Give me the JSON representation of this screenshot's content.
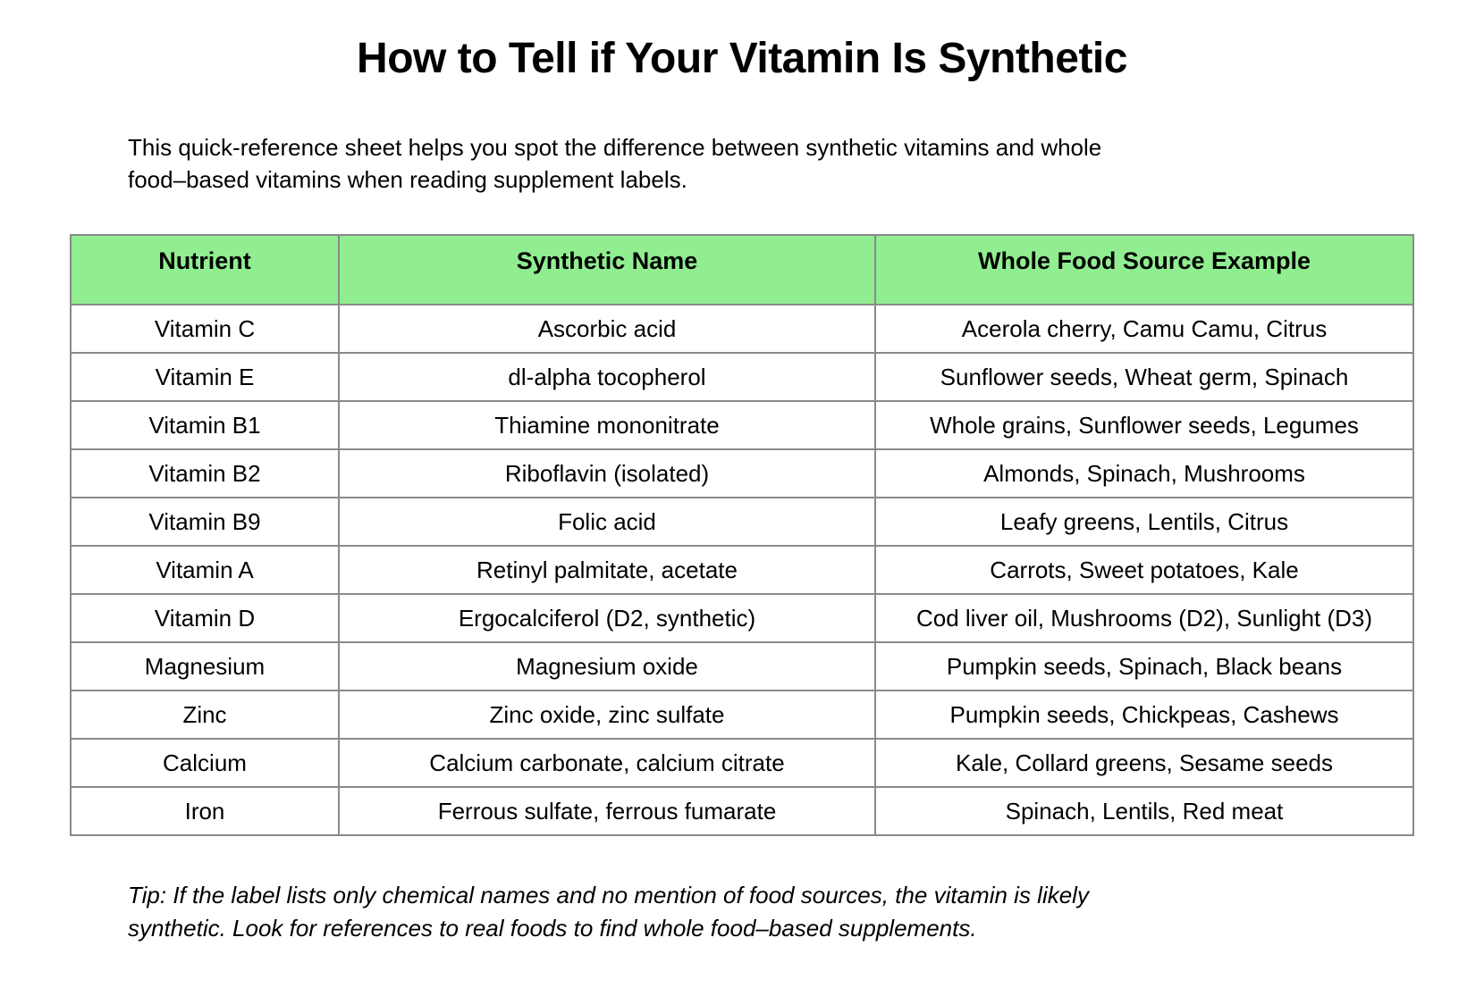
{
  "title": "How to Tell if Your Vitamin Is Synthetic",
  "intro": "This quick-reference sheet helps you spot the difference between synthetic vitamins and whole\nfood–based vitamins when reading supplement labels.",
  "table": {
    "headers": [
      "Nutrient",
      "Synthetic Name",
      "Whole Food Source Example"
    ],
    "rows": [
      [
        "Vitamin C",
        "Ascorbic acid",
        "Acerola cherry, Camu Camu, Citrus"
      ],
      [
        "Vitamin E",
        "dl-alpha tocopherol",
        "Sunflower seeds, Wheat germ, Spinach"
      ],
      [
        "Vitamin B1",
        "Thiamine mononitrate",
        "Whole grains, Sunflower seeds, Legumes"
      ],
      [
        "Vitamin B2",
        "Riboflavin (isolated)",
        "Almonds, Spinach, Mushrooms"
      ],
      [
        "Vitamin B9",
        "Folic acid",
        "Leafy greens, Lentils, Citrus"
      ],
      [
        "Vitamin A",
        "Retinyl palmitate, acetate",
        "Carrots, Sweet potatoes, Kale"
      ],
      [
        "Vitamin D",
        "Ergocalciferol (D2, synthetic)",
        "Cod liver oil, Mushrooms (D2), Sunlight (D3)"
      ],
      [
        "Magnesium",
        "Magnesium oxide",
        "Pumpkin seeds, Spinach, Black beans"
      ],
      [
        "Zinc",
        "Zinc oxide, zinc sulfate",
        "Pumpkin seeds, Chickpeas, Cashews"
      ],
      [
        "Calcium",
        "Calcium carbonate, calcium citrate",
        "Kale, Collard greens, Sesame seeds"
      ],
      [
        "Iron",
        "Ferrous sulfate, ferrous fumarate",
        "Spinach, Lentils, Red meat"
      ]
    ]
  },
  "tip": "Tip: If the label lists only chemical names and no mention of food sources, the vitamin is likely\nsynthetic. Look for references to real foods to find whole food–based supplements.",
  "colors": {
    "header_bg": "#90EE90",
    "border": "#8a8a8a",
    "text": "#000000",
    "background": "#ffffff"
  }
}
